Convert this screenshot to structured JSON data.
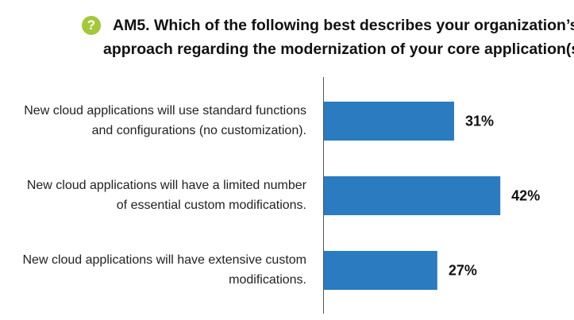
{
  "header": {
    "icon": "question-mark-icon",
    "icon_glyph": "?",
    "icon_color": "#a3c83a"
  },
  "chart_data": {
    "type": "bar",
    "orientation": "horizontal",
    "title_line1": "AM5. Which of the following best describes your organization’s",
    "title_line2": "approach regarding the modernization of your core application(s)?",
    "categories": [
      "New cloud applications will use standard functions and configurations (no customization).",
      "New cloud applications will have a limited number of essential custom modifications.",
      "New cloud applications will have extensive custom modifications."
    ],
    "values": [
      31,
      42,
      27
    ],
    "value_labels": [
      "31%",
      "42%",
      "27%"
    ],
    "unit": "%",
    "xlim": [
      0,
      56
    ],
    "grid": false,
    "bar_color": "#2a7bbf"
  }
}
